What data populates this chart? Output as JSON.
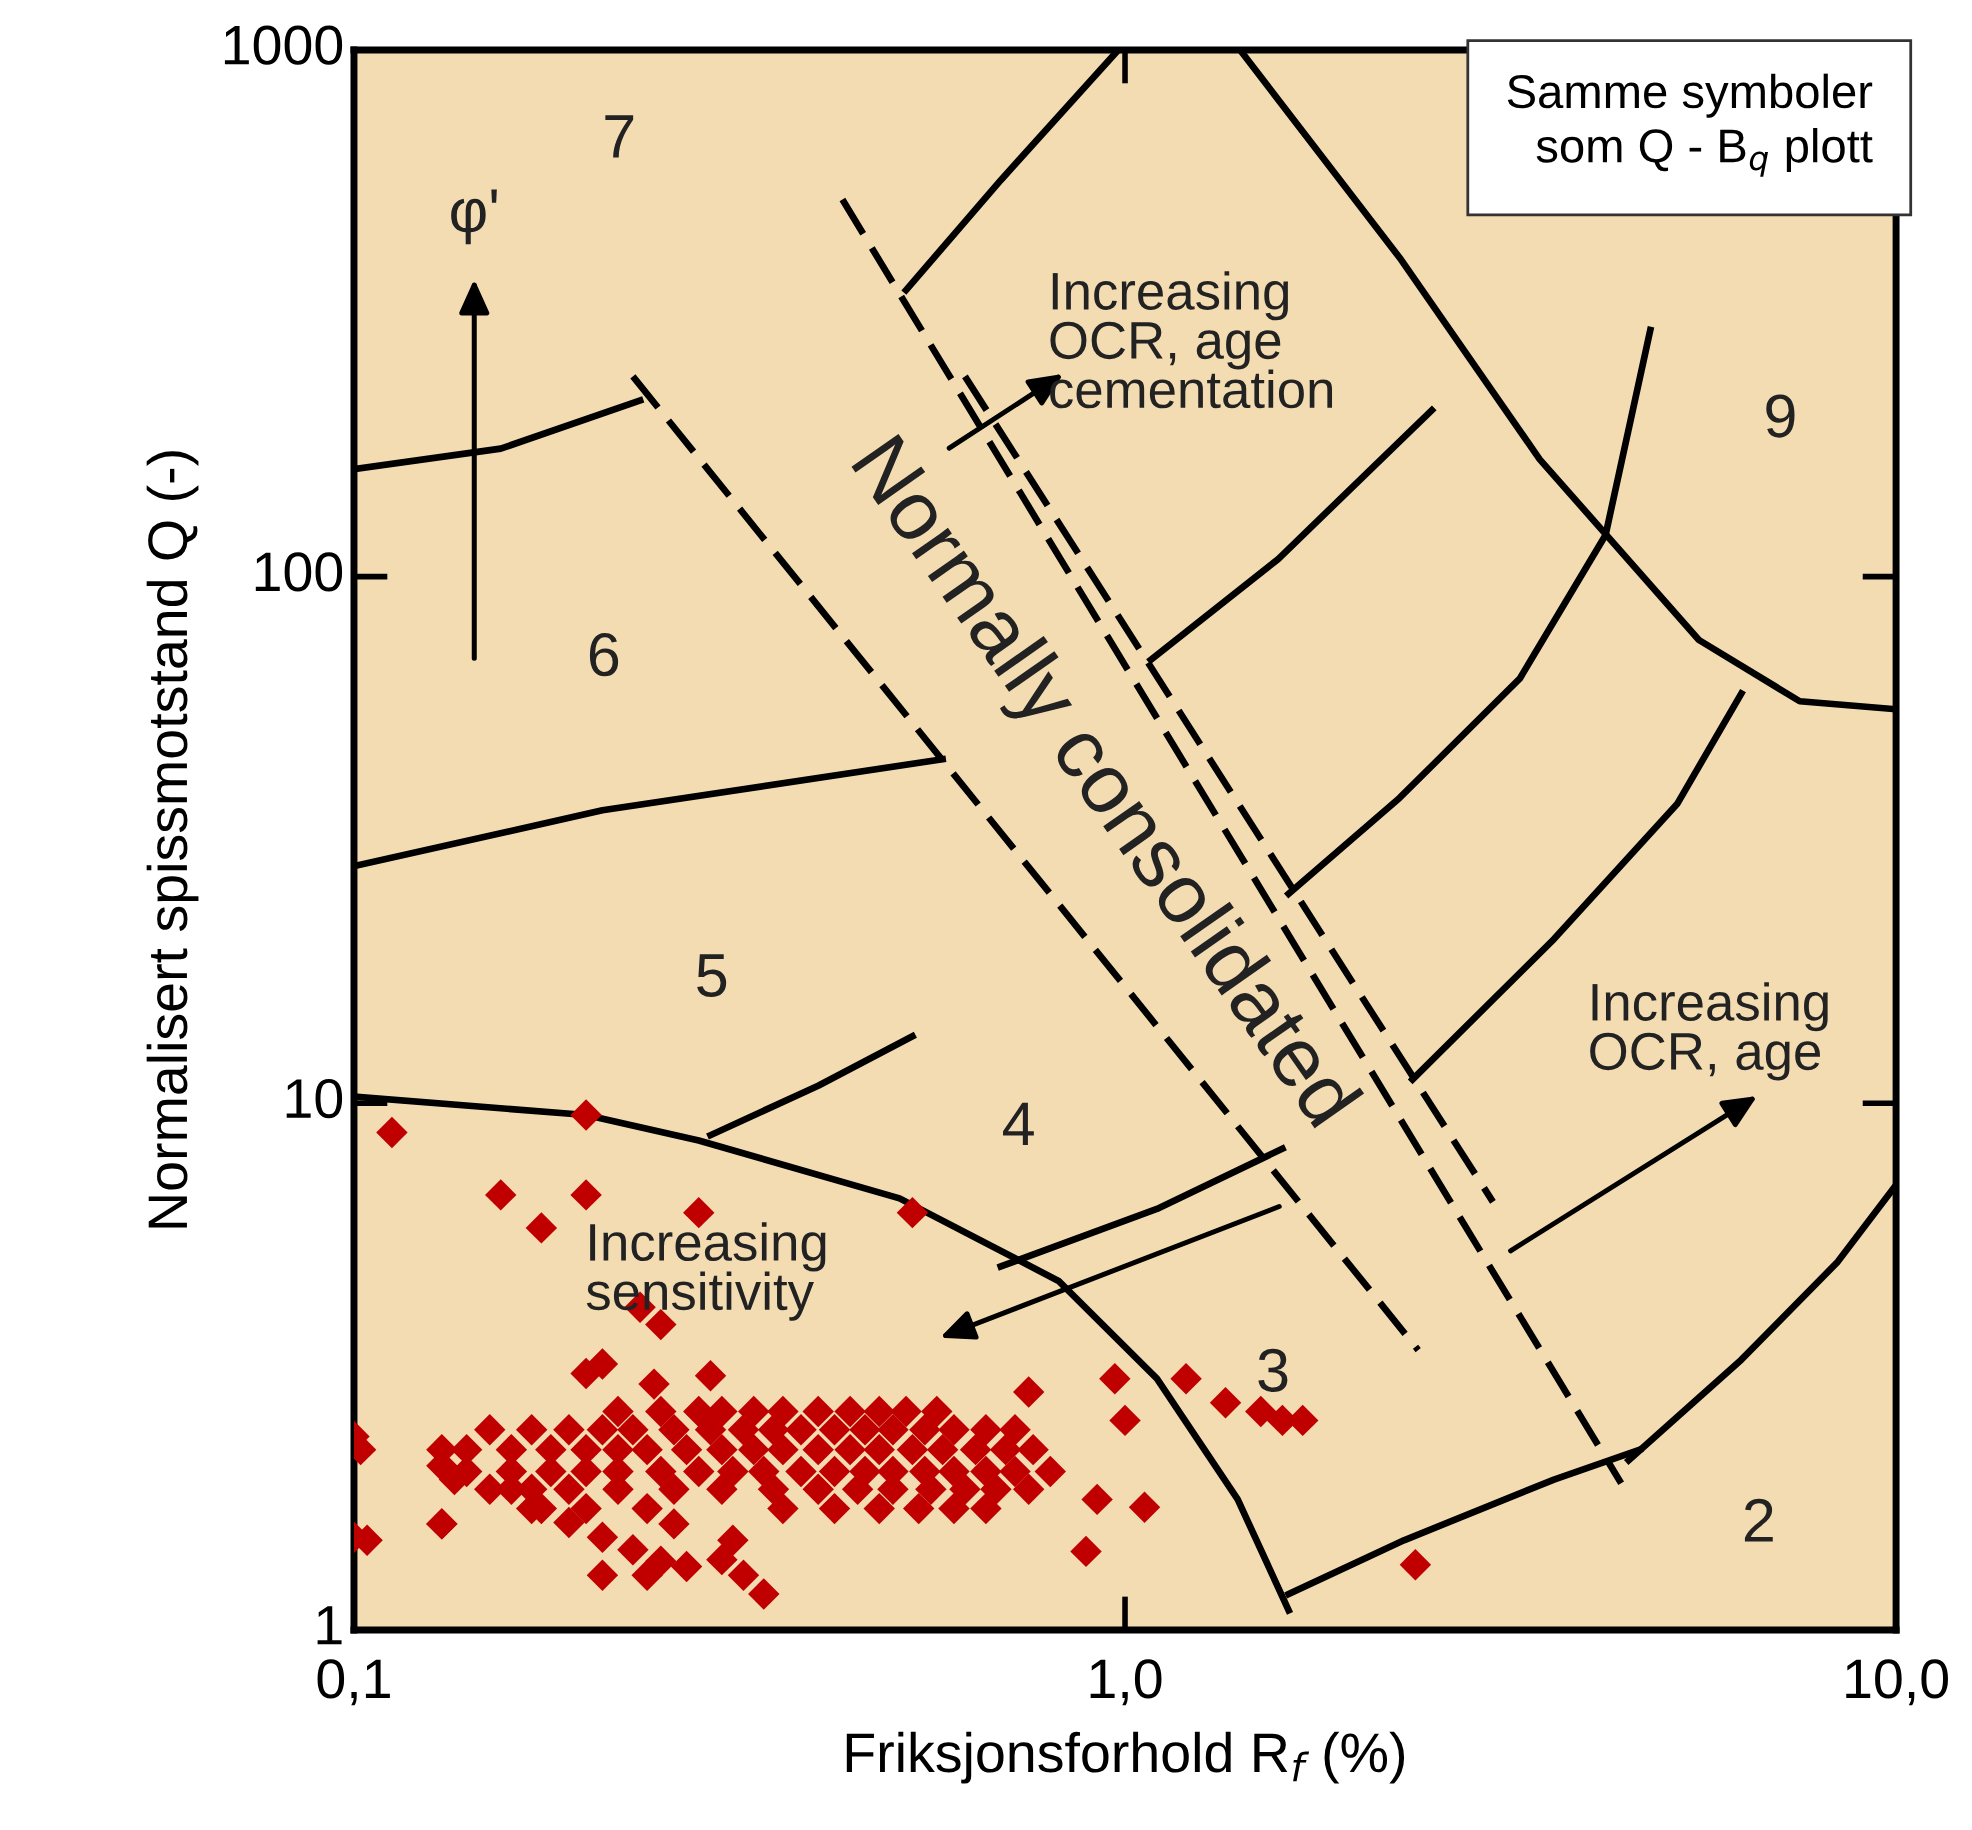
{
  "chart_data": {
    "type": "scatter",
    "xlabel": "Friksjonsforhold R$_{f}$ (%)",
    "ylabel": "Normalisert spissmotstand Q (-)",
    "log": "xy",
    "xlim": [
      0.1,
      10
    ],
    "ylim": [
      1,
      1000
    ],
    "xticks": [
      {
        "value": 0.1,
        "label": "0,1"
      },
      {
        "value": 1,
        "label": "1,0"
      },
      {
        "value": 10,
        "label": "10,0"
      }
    ],
    "yticks": [
      1,
      10,
      100,
      1000
    ],
    "grid": false,
    "series": [
      {
        "type": "line",
        "color": "#000000",
        "x": [
          0.1,
          0.2,
          0.28,
          0.51,
          0.82,
          1.1,
          1.4,
          1.63
        ],
        "values": [
          10.3,
          9.5,
          8.5,
          6.6,
          4.6,
          3.0,
          1.77,
          1.09
        ]
      },
      {
        "type": "line",
        "color": "#000000",
        "x": [
          1.63,
          2.3,
          3.6,
          4.65
        ],
        "values": [
          1.17,
          1.48,
          1.93,
          2.2
        ]
      },
      {
        "type": "line",
        "color": "#000000",
        "x": [
          4.5,
          6.3,
          8.4,
          10
        ],
        "values": [
          2.1,
          3.26,
          5.0,
          7.0
        ]
      },
      {
        "type": "line",
        "color": "#000000",
        "x": [
          0.29,
          0.4,
          0.53
        ],
        "values": [
          8.7,
          10.8,
          13.4
        ]
      },
      {
        "type": "line",
        "color": "#000000",
        "x": [
          0.69,
          1.1,
          1.6
        ],
        "values": [
          4.9,
          6.3,
          8.2
        ]
      },
      {
        "type": "line",
        "color": "#000000",
        "x": [
          2.36,
          3.6,
          5.2,
          6.3
        ],
        "values": [
          11.1,
          20.5,
          37,
          60
        ]
      },
      {
        "type": "line",
        "color": "#000000",
        "x": [
          1.63,
          2.27,
          3.25,
          4.2,
          4.8
        ],
        "values": [
          25,
          38,
          64,
          120,
          294
        ]
      },
      {
        "type": "line",
        "color": "#000000",
        "x": [
          1.08,
          1.58,
          2.5
        ],
        "values": [
          69.5,
          108,
          207
        ]
      },
      {
        "type": "line",
        "color": "#000000",
        "x": [
          1.41,
          2.28,
          3.45,
          5.55,
          7.5,
          10
        ],
        "values": [
          1000,
          400,
          167,
          75.8,
          58,
          56
        ]
      },
      {
        "type": "line",
        "color": "#000000",
        "x": [
          0.98,
          0.69,
          0.52
        ],
        "values": [
          1000,
          566,
          350
        ]
      },
      {
        "type": "line",
        "color": "#000000",
        "x": [
          0.1,
          0.155,
          0.235
        ],
        "values": [
          160,
          175,
          216
        ]
      },
      {
        "type": "line",
        "color": "#000000",
        "x": [
          0.1,
          0.21,
          0.58
        ],
        "values": [
          28.2,
          36,
          45
        ]
      },
      {
        "type": "line",
        "color": "#000000",
        "line_style": "dashed",
        "x": [
          0.23,
          2.4
        ],
        "values": [
          240,
          3.4
        ]
      },
      {
        "type": "line",
        "color": "#000000",
        "line_style": "dashed",
        "x": [
          0.43,
          4.4
        ],
        "values": [
          520,
          1.9
        ]
      },
      {
        "type": "line",
        "color": "#000000",
        "line_style": "dashed",
        "x": [
          0.62,
          3.0
        ],
        "values": [
          240,
          6.5
        ]
      },
      {
        "marker": "diamond",
        "color": "#c00000",
        "x": [
          0.112,
          0.2,
          0.155,
          0.2,
          0.175,
          0.28,
          0.53,
          0.235,
          0.25,
          0.2,
          0.21,
          0.245,
          0.29,
          0.75,
          0.97,
          1.2,
          1.0,
          1.35,
          1.5,
          1.6,
          1.7,
          1.06,
          0.89,
          0.92,
          2.38,
          0.1,
          0.102,
          0.1,
          0.104,
          0.13,
          0.13,
          0.135,
          0.21,
          0.24,
          0.32,
          0.34,
          0.3,
          0.31,
          0.26,
          0.13,
          0.16,
          0.175,
          0.19,
          0.21,
          0.23,
          0.25,
          0.27,
          0.22,
          0.25,
          0.28,
          0.3,
          0.33,
          0.36,
          0.4,
          0.44,
          0.48,
          0.52,
          0.57,
          0.15,
          0.17,
          0.19,
          0.21,
          0.23,
          0.26,
          0.29,
          0.32,
          0.35,
          0.38,
          0.42,
          0.46,
          0.5,
          0.55,
          0.6,
          0.66,
          0.72,
          0.13,
          0.14,
          0.16,
          0.18,
          0.2,
          0.22,
          0.24,
          0.27,
          0.3,
          0.33,
          0.36,
          0.4,
          0.44,
          0.48,
          0.53,
          0.58,
          0.64,
          0.7,
          0.76,
          0.14,
          0.16,
          0.18,
          0.2,
          0.22,
          0.25,
          0.28,
          0.31,
          0.34,
          0.38,
          0.42,
          0.46,
          0.5,
          0.55,
          0.6,
          0.66,
          0.72,
          0.8,
          0.15,
          0.17,
          0.19,
          0.22,
          0.26,
          0.3,
          0.35,
          0.4,
          0.45,
          0.5,
          0.56,
          0.62,
          0.68,
          0.75,
          0.17,
          0.2,
          0.24,
          0.36,
          0.42,
          0.48,
          0.54,
          0.6,
          0.66
        ],
        "values": [
          8.8,
          9.5,
          6.7,
          6.7,
          5.8,
          6.2,
          6.2,
          4.1,
          3.8,
          3.07,
          3.2,
          2.93,
          3.04,
          2.83,
          3.0,
          3.0,
          2.5,
          2.7,
          2.6,
          2.5,
          2.5,
          1.71,
          1.41,
          1.77,
          1.33,
          2.33,
          2.2,
          1.5,
          1.48,
          1.59,
          2.05,
          1.93,
          1.27,
          1.27,
          1.27,
          1.17,
          1.36,
          1.48,
          1.59,
          1.59,
          1.85,
          1.7,
          1.6,
          1.5,
          1.42,
          1.35,
          1.32,
          2.6,
          2.6,
          2.6,
          2.6,
          2.6,
          2.6,
          2.6,
          2.6,
          2.6,
          2.6,
          2.6,
          2.4,
          2.4,
          2.4,
          2.4,
          2.4,
          2.4,
          2.4,
          2.4,
          2.4,
          2.4,
          2.4,
          2.4,
          2.4,
          2.4,
          2.4,
          2.4,
          2.4,
          2.2,
          2.2,
          2.2,
          2.2,
          2.2,
          2.2,
          2.2,
          2.2,
          2.2,
          2.2,
          2.2,
          2.2,
          2.2,
          2.2,
          2.2,
          2.2,
          2.2,
          2.2,
          2.2,
          2.0,
          2.0,
          2.0,
          2.0,
          2.0,
          2.0,
          2.0,
          2.0,
          2.0,
          2.0,
          2.0,
          2.0,
          2.0,
          2.0,
          2.0,
          2.0,
          2.0,
          2.0,
          1.85,
          1.85,
          1.85,
          1.85,
          1.85,
          1.85,
          1.85,
          1.85,
          1.85,
          1.85,
          1.85,
          1.85,
          1.85,
          1.85,
          1.7,
          1.7,
          1.7,
          1.7,
          1.7,
          1.7,
          1.7,
          1.7,
          1.7
        ]
      }
    ],
    "annotations": [
      "7",
      "6",
      "5",
      "4",
      "3",
      "2",
      "9",
      "Normally consolidated",
      "φ'",
      "Increasing\nOCR, age\ncementation",
      "Increasing\nOCR, age",
      "Increasing\nsensitivity",
      "Samme symboler\nsom Q - B$_{q}$ plott"
    ]
  }
}
